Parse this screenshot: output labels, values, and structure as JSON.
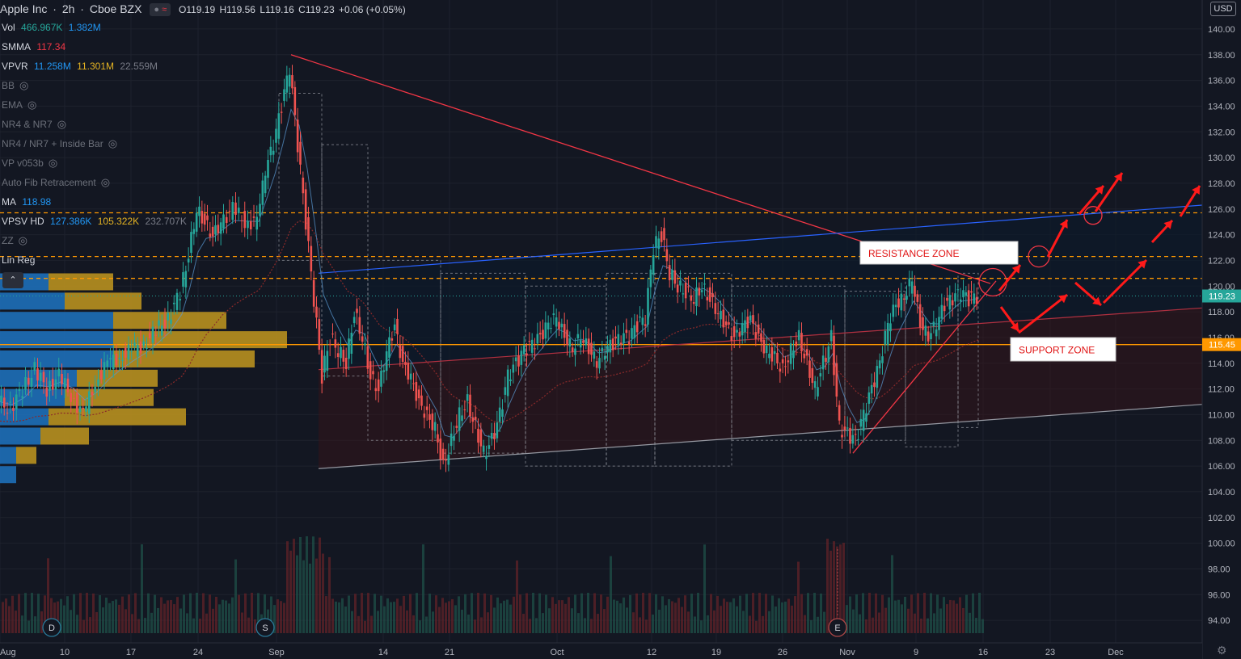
{
  "header": {
    "symbol": "Apple Inc",
    "interval": "2h",
    "exchange": "Cboe BZX",
    "ohlc": {
      "o": "O119.19",
      "h": "H119.56",
      "l": "L119.16",
      "c": "C119.23",
      "chg": "+0.06 (+0.05%)"
    }
  },
  "indicators": [
    {
      "name": "Vol",
      "values": [
        "466.967K",
        "1.382M"
      ],
      "colors": [
        "#26a69a",
        "#2196f3"
      ]
    },
    {
      "name": "SMMA",
      "values": [
        "117.34"
      ],
      "colors": [
        "#f23645"
      ]
    },
    {
      "name": "VPVR",
      "values": [
        "11.258M",
        "11.301M",
        "22.559M"
      ],
      "colors": [
        "#2196f3",
        "#e6b422",
        "#787b86"
      ]
    },
    {
      "name": "BB",
      "hidden": true
    },
    {
      "name": "EMA",
      "hidden": true
    },
    {
      "name": "NR4 & NR7",
      "hidden": true
    },
    {
      "name": "NR4 / NR7 + Inside Bar",
      "hidden": true
    },
    {
      "name": "VP v053b",
      "hidden": true
    },
    {
      "name": "Auto Fib Retracement",
      "hidden": true
    },
    {
      "name": "MA",
      "values": [
        "118.98"
      ],
      "colors": [
        "#2196f3"
      ]
    },
    {
      "name": "VPSV HD",
      "values": [
        "127.386K",
        "105.322K",
        "232.707K"
      ],
      "colors": [
        "#2196f3",
        "#e6b422",
        "#787b86"
      ]
    },
    {
      "name": "ZZ",
      "hidden": true
    },
    {
      "name": "Lin Reg"
    }
  ],
  "currency": "USD",
  "annotations": {
    "resistance": "RESISTANCE ZONE",
    "support": "SUPPORT ZONE"
  },
  "events": [
    "D",
    "S",
    "E"
  ],
  "colors": {
    "up": "#26a69a",
    "down": "#ef5350",
    "accent": "#2962ff",
    "resistance": "#ff9800",
    "support": "#ff9800",
    "trend": "#f23645"
  },
  "chart_data": {
    "type": "candlestick",
    "title": "Apple Inc · 2h · Cboe BZX",
    "y_ticks": [
      94,
      96,
      98,
      100,
      102,
      104,
      106,
      108,
      110,
      112,
      114,
      116,
      118,
      120,
      122,
      124,
      126,
      128,
      130,
      132,
      134,
      136,
      138,
      140
    ],
    "x_ticks": [
      "Aug",
      "10",
      "17",
      "24",
      "Sep",
      "14",
      "21",
      "Oct",
      "12",
      "19",
      "26",
      "Nov",
      "9",
      "16",
      "23",
      "Dec"
    ],
    "ylim": [
      93,
      141
    ],
    "last_price": 119.23,
    "marked_price": 115.45,
    "resistance_levels": [
      125.7,
      122.3,
      120.6
    ],
    "close_path": [
      [
        0,
        111
      ],
      [
        15,
        110.5
      ],
      [
        30,
        112
      ],
      [
        45,
        113.5
      ],
      [
        60,
        112
      ],
      [
        75,
        113
      ],
      [
        90,
        111.5
      ],
      [
        105,
        110
      ],
      [
        120,
        112.5
      ],
      [
        135,
        114
      ],
      [
        150,
        114.5
      ],
      [
        165,
        115
      ],
      [
        180,
        115.5
      ],
      [
        195,
        116.5
      ],
      [
        210,
        117.5
      ],
      [
        225,
        119.5
      ],
      [
        235,
        122.5
      ],
      [
        245,
        126
      ],
      [
        255,
        125
      ],
      [
        265,
        124
      ],
      [
        275,
        125
      ],
      [
        290,
        126
      ],
      [
        305,
        125
      ],
      [
        320,
        125
      ],
      [
        330,
        129
      ],
      [
        340,
        131
      ],
      [
        350,
        134
      ],
      [
        360,
        137
      ],
      [
        370,
        131
      ],
      [
        380,
        125
      ],
      [
        390,
        119
      ],
      [
        400,
        113
      ],
      [
        410,
        116
      ],
      [
        420,
        115
      ],
      [
        430,
        114
      ],
      [
        440,
        118
      ],
      [
        450,
        116
      ],
      [
        460,
        113
      ],
      [
        470,
        112
      ],
      [
        480,
        115
      ],
      [
        490,
        117
      ],
      [
        500,
        114
      ],
      [
        510,
        113
      ],
      [
        520,
        111
      ],
      [
        530,
        110
      ],
      [
        540,
        109
      ],
      [
        550,
        106
      ],
      [
        560,
        108
      ],
      [
        570,
        110
      ],
      [
        580,
        111
      ],
      [
        590,
        109
      ],
      [
        600,
        107
      ],
      [
        610,
        108
      ],
      [
        620,
        110
      ],
      [
        630,
        113
      ],
      [
        640,
        114
      ],
      [
        650,
        115
      ],
      [
        660,
        115.5
      ],
      [
        670,
        116
      ],
      [
        680,
        117
      ],
      [
        690,
        117.5
      ],
      [
        700,
        116
      ],
      [
        710,
        115
      ],
      [
        720,
        116
      ],
      [
        730,
        115
      ],
      [
        740,
        114
      ],
      [
        750,
        115
      ],
      [
        760,
        115.5
      ],
      [
        770,
        116
      ],
      [
        780,
        116
      ],
      [
        790,
        117
      ],
      [
        800,
        117.5
      ],
      [
        810,
        123
      ],
      [
        820,
        124
      ],
      [
        830,
        121
      ],
      [
        840,
        120
      ],
      [
        850,
        119.5
      ],
      [
        860,
        119
      ],
      [
        870,
        120
      ],
      [
        880,
        119
      ],
      [
        890,
        118
      ],
      [
        900,
        117
      ],
      [
        910,
        116
      ],
      [
        920,
        117
      ],
      [
        930,
        117.5
      ],
      [
        940,
        116
      ],
      [
        950,
        115
      ],
      [
        960,
        114.5
      ],
      [
        970,
        113.5
      ],
      [
        980,
        115
      ],
      [
        990,
        116
      ],
      [
        1000,
        114
      ],
      [
        1010,
        112
      ],
      [
        1020,
        114
      ],
      [
        1030,
        116
      ],
      [
        1040,
        109
      ],
      [
        1050,
        108.5
      ],
      [
        1060,
        108
      ],
      [
        1070,
        110
      ],
      [
        1080,
        112
      ],
      [
        1090,
        114
      ],
      [
        1100,
        117
      ],
      [
        1110,
        118.5
      ],
      [
        1120,
        119
      ],
      [
        1130,
        120.5
      ],
      [
        1140,
        117
      ],
      [
        1150,
        116
      ],
      [
        1160,
        117
      ],
      [
        1170,
        118.5
      ],
      [
        1180,
        119
      ],
      [
        1190,
        119.5
      ],
      [
        1200,
        119
      ],
      [
        1210,
        119.23
      ]
    ],
    "price_labels": [
      "119.23",
      "115.45"
    ],
    "vpvr_rows": [
      {
        "price": 120.3,
        "up": 60,
        "down": 80
      },
      {
        "price": 118.8,
        "up": 80,
        "down": 95
      },
      {
        "price": 117.3,
        "up": 140,
        "down": 140
      },
      {
        "price": 115.8,
        "up": 140,
        "down": 215
      },
      {
        "price": 114.3,
        "up": 140,
        "down": 175
      },
      {
        "price": 112.8,
        "up": 95,
        "down": 100
      },
      {
        "price": 111.3,
        "up": 80,
        "down": 110
      },
      {
        "price": 109.8,
        "up": 60,
        "down": 170
      },
      {
        "price": 108.3,
        "up": 50,
        "down": 60
      },
      {
        "price": 106.8,
        "up": 20,
        "down": 25
      },
      {
        "price": 105.3,
        "up": 20,
        "down": 0
      }
    ]
  }
}
